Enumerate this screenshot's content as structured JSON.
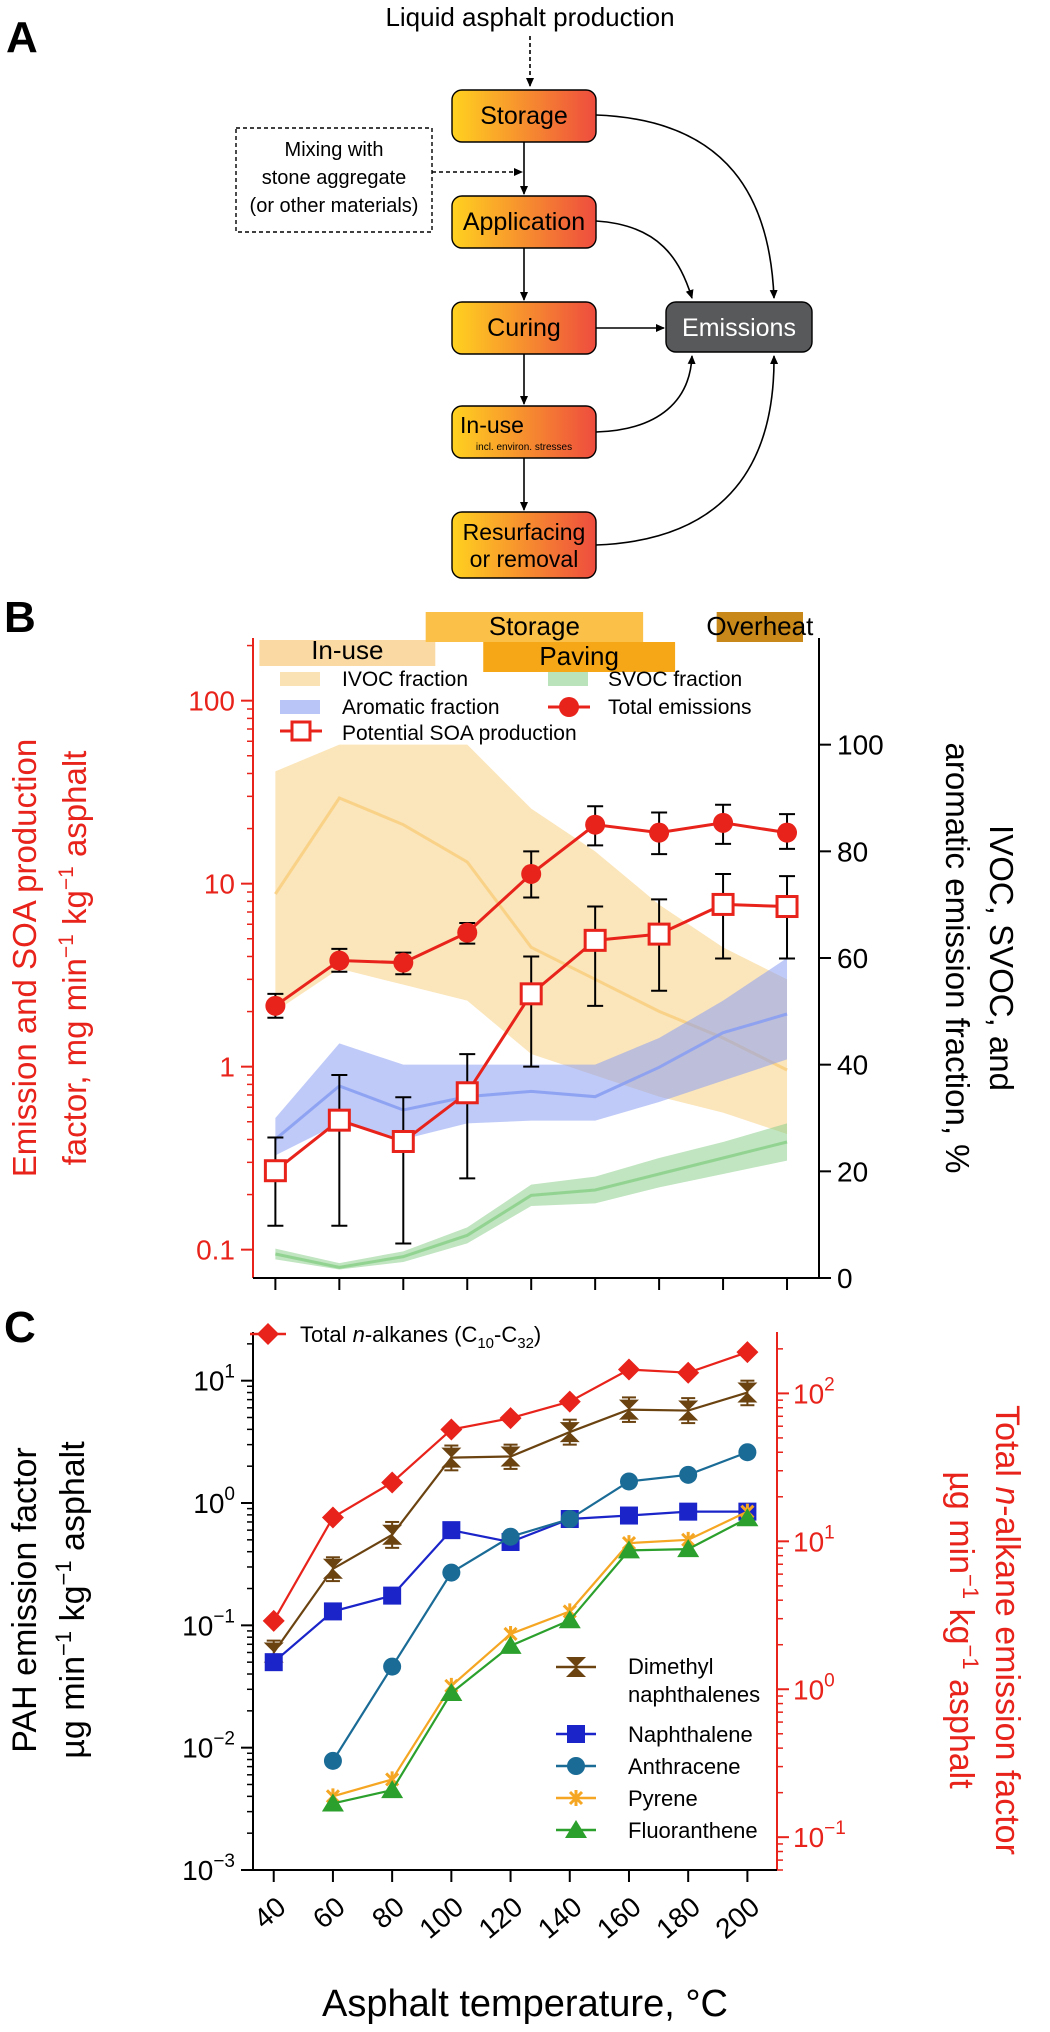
{
  "panel_a": {
    "letter": "A",
    "top_input": "Liquid asphalt production",
    "mixing_lines": [
      "Mixing with",
      "stone aggregate",
      "(or other materials)"
    ],
    "boxes": {
      "storage": "Storage",
      "application": "Application",
      "curing": "Curing",
      "inuse": "In-use",
      "inuse_sub": "incl. environ. stresses",
      "resurfacing_1": "Resurfacing",
      "resurfacing_2": "or removal",
      "emissions": "Emissions"
    },
    "colors": {
      "gradient_start": "#ffd21f",
      "gradient_end": "#ee4c3e",
      "emissions_box": "#58595b"
    }
  },
  "chart_data": [
    {
      "panel": "B",
      "type": "line",
      "phases": [
        {
          "label": "In-use",
          "start": 35,
          "end": 90,
          "color": "#fbd9a3"
        },
        {
          "label": "Storage",
          "start": 87,
          "end": 155,
          "color": "#fbc048"
        },
        {
          "label": "Paving",
          "start": 105,
          "end": 165,
          "color": "#f6a717"
        },
        {
          "label": "Overheat",
          "start": 178,
          "end": 205,
          "color": "#c8881a"
        }
      ],
      "x": [
        40,
        60,
        80,
        100,
        120,
        140,
        160,
        180,
        200
      ],
      "xlim": [
        33,
        210
      ],
      "left_axis": {
        "label_line1": "Emission and SOA production",
        "label_line2": "factor, mg min",
        "label_sup1": "−1",
        "label_mid": " kg",
        "label_sup2": "−1",
        "label_end": " asphalt",
        "scale": "log",
        "ylim": [
          0.07,
          220
        ],
        "ticks": [
          0.1,
          1,
          10,
          100
        ],
        "tick_labels": [
          "0.1",
          "1",
          "10",
          "100"
        ],
        "color": "#e8231b"
      },
      "right_axis": {
        "label_line1": "IVOC, SVOC, and",
        "label_line2": "aromatic emission fraction, %",
        "scale": "linear",
        "ylim": [
          0,
          120
        ],
        "ticks": [
          0,
          20,
          40,
          60,
          80,
          100
        ],
        "tick_labels": [
          "0",
          "20",
          "40",
          "60",
          "80",
          "100"
        ]
      },
      "series": [
        {
          "name": "IVOC fraction",
          "axis": "right",
          "style": "band",
          "color": "#f8cf82",
          "values": [
            72,
            90,
            85,
            78,
            62,
            56,
            50,
            45,
            39
          ],
          "lower": [
            50,
            58,
            55,
            52,
            42,
            38,
            34,
            31,
            27
          ],
          "upper": [
            95,
            100,
            100,
            100,
            88,
            80,
            70,
            62,
            56
          ]
        },
        {
          "name": "SVOC fraction",
          "axis": "right",
          "style": "band",
          "color": "#8dd08d",
          "values": [
            4.5,
            2.0,
            4.0,
            8.0,
            15.5,
            16.5,
            19.5,
            22.5,
            25.5
          ],
          "lower": [
            3.5,
            1.6,
            3.0,
            6.5,
            13.5,
            14.0,
            17.0,
            19.5,
            22.0
          ],
          "upper": [
            5.5,
            2.8,
            5.0,
            9.5,
            17.5,
            19.0,
            22.5,
            25.5,
            29.0
          ]
        },
        {
          "name": "Aromatic fraction",
          "axis": "right",
          "style": "band",
          "color": "#8a9ef2",
          "values": [
            26,
            36,
            31.5,
            34,
            35,
            34,
            39.5,
            46,
            49.5
          ],
          "lower": [
            23,
            29,
            26,
            29,
            29.5,
            29.5,
            33,
            37,
            41
          ],
          "upper": [
            30,
            44,
            40,
            40,
            40,
            40,
            45,
            52,
            60
          ]
        },
        {
          "name": "Total emissions",
          "axis": "left",
          "style": "line-circle",
          "color": "#e8231b",
          "values": [
            2.15,
            3.8,
            3.7,
            5.4,
            11.3,
            21,
            19,
            21.5,
            19
          ],
          "err_low": [
            1.85,
            3.3,
            3.2,
            4.7,
            8.4,
            16.2,
            14.5,
            16.5,
            15.5
          ],
          "err_high": [
            2.5,
            4.4,
            4.2,
            6.1,
            15.0,
            26.5,
            24.5,
            27.0,
            24.0
          ]
        },
        {
          "name": "Potential SOA production",
          "axis": "left",
          "style": "line-square",
          "color": "#e8231b",
          "values": [
            0.27,
            0.51,
            0.39,
            0.72,
            2.5,
            4.9,
            5.3,
            7.7,
            7.5
          ],
          "err_low": [
            0.135,
            0.135,
            0.108,
            0.245,
            1.0,
            2.15,
            2.6,
            3.9,
            3.9
          ],
          "err_high": [
            0.41,
            0.9,
            0.68,
            1.17,
            4.0,
            7.5,
            8.2,
            11.3,
            11.0
          ]
        }
      ],
      "legend_placement": "top"
    },
    {
      "panel": "C",
      "type": "line",
      "x": [
        40,
        60,
        80,
        100,
        120,
        140,
        160,
        180,
        200
      ],
      "x_tick_labels": [
        "40",
        "60",
        "80",
        "100",
        "120",
        "140",
        "160",
        "180",
        "200"
      ],
      "xlabel": "Asphalt temperature, °C",
      "xlim": [
        33,
        210
      ],
      "left_axis": {
        "label_line1": "PAH emission factor",
        "label_line2": "µg min",
        "label_sup1": "−1",
        "label_mid": " kg",
        "label_sup2": "−1",
        "label_end": " asphalt",
        "scale": "log",
        "ylim": [
          0.001,
          25
        ],
        "ticks": [
          0.001,
          0.01,
          0.1,
          1,
          10
        ],
        "tick_mantissa": [
          "10",
          "10",
          "10",
          "10",
          "10"
        ],
        "tick_exponents": [
          "−3",
          "−2",
          "−1",
          "0",
          "1"
        ]
      },
      "right_axis": {
        "label_line1_pre": "Total ",
        "label_line1_italic": "n",
        "label_line1_post": "-alkane emission factor",
        "label_line2": "µg min",
        "label_sup1": "−1",
        "label_mid": " kg",
        "label_sup2": "−1",
        "label_end": " asphalt",
        "scale": "log",
        "ylim": [
          0.06,
          260
        ],
        "ticks": [
          0.1,
          1,
          10,
          100
        ],
        "tick_mantissa": [
          "10",
          "10",
          "10",
          "10"
        ],
        "tick_exponents": [
          "−1",
          "0",
          "1",
          "2"
        ],
        "color": "#e8231b"
      },
      "series": [
        {
          "name_pre": "Total ",
          "name_italic": "n",
          "name_post": "-alkanes (C",
          "name_sub1": "10",
          "name_mid": "-C",
          "name_sub2": "32",
          "name_end": ")",
          "axis": "right",
          "marker": "diamond",
          "color": "#e8231b",
          "values": [
            2.9,
            14.5,
            25,
            57,
            68,
            88,
            145,
            138,
            190
          ]
        },
        {
          "name": "Dimethyl naphthalenes",
          "name_line1": "Dimethyl",
          "name_line2": "naphthalenes",
          "axis": "left",
          "marker": "hourglass",
          "color": "#6b4311",
          "values": [
            0.06,
            0.29,
            0.55,
            2.35,
            2.4,
            3.8,
            5.8,
            5.7,
            8.0
          ],
          "err_low": [
            0.048,
            0.23,
            0.43,
            1.85,
            1.9,
            3.0,
            4.6,
            4.5,
            6.3
          ],
          "err_high": [
            0.075,
            0.36,
            0.7,
            2.95,
            3.0,
            4.8,
            7.3,
            7.2,
            10.0
          ]
        },
        {
          "name": "Naphthalene",
          "axis": "left",
          "marker": "square",
          "color": "#1a24c8",
          "values": [
            0.05,
            0.13,
            0.175,
            0.6,
            0.48,
            0.74,
            0.79,
            0.85,
            0.85
          ]
        },
        {
          "name": "Anthracene",
          "axis": "left",
          "marker": "circle",
          "color": "#1a6b96",
          "values": [
            null,
            0.0078,
            0.046,
            0.27,
            0.53,
            0.74,
            1.5,
            1.7,
            2.6
          ]
        },
        {
          "name": "Pyrene",
          "axis": "left",
          "marker": "star",
          "color": "#f5a623",
          "values": [
            null,
            0.004,
            0.0055,
            0.032,
            0.085,
            0.13,
            0.47,
            0.5,
            0.85
          ]
        },
        {
          "name": "Fluoranthene",
          "axis": "left",
          "marker": "triangle",
          "color": "#2ca02c",
          "values": [
            null,
            0.0035,
            0.0045,
            0.028,
            0.068,
            0.11,
            0.41,
            0.42,
            0.75
          ]
        }
      ],
      "legend_placement": "bottom-right"
    }
  ],
  "panel_letters": {
    "b": "B",
    "c": "C"
  }
}
